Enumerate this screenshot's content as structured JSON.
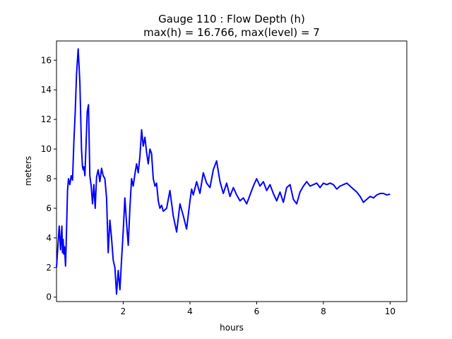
{
  "chart_data": {
    "type": "line",
    "title": "Gauge 110 : Flow Depth (h)",
    "subtitle": "max(h) =  16.766,    max(level) = 7",
    "xlabel": "hours",
    "ylabel": "meters",
    "xlim": [
      0.0,
      10.5
    ],
    "ylim": [
      -0.3,
      17.3
    ],
    "xticks": [
      2,
      4,
      6,
      8,
      10
    ],
    "yticks": [
      0,
      2,
      4,
      6,
      8,
      10,
      12,
      14,
      16
    ],
    "grid": false,
    "series_color": "#0000ff",
    "x": [
      0.0,
      0.08,
      0.12,
      0.16,
      0.18,
      0.2,
      0.22,
      0.24,
      0.27,
      0.3,
      0.33,
      0.36,
      0.4,
      0.44,
      0.48,
      0.52,
      0.56,
      0.6,
      0.65,
      0.7,
      0.75,
      0.78,
      0.8,
      0.82,
      0.85,
      0.88,
      0.92,
      0.96,
      1.0,
      1.04,
      1.08,
      1.12,
      1.16,
      1.2,
      1.25,
      1.3,
      1.35,
      1.4,
      1.45,
      1.5,
      1.55,
      1.6,
      1.65,
      1.7,
      1.75,
      1.8,
      1.85,
      1.9,
      1.95,
      2.0,
      2.05,
      2.1,
      2.15,
      2.2,
      2.25,
      2.3,
      2.35,
      2.4,
      2.45,
      2.5,
      2.55,
      2.6,
      2.65,
      2.7,
      2.75,
      2.8,
      2.85,
      2.9,
      2.95,
      3.0,
      3.05,
      3.1,
      3.15,
      3.2,
      3.3,
      3.4,
      3.5,
      3.6,
      3.7,
      3.8,
      3.9,
      4.0,
      4.05,
      4.1,
      4.2,
      4.3,
      4.4,
      4.5,
      4.6,
      4.7,
      4.8,
      4.9,
      5.0,
      5.1,
      5.2,
      5.3,
      5.4,
      5.5,
      5.6,
      5.7,
      5.8,
      5.9,
      6.0,
      6.1,
      6.2,
      6.3,
      6.4,
      6.5,
      6.6,
      6.7,
      6.8,
      6.9,
      7.0,
      7.1,
      7.2,
      7.3,
      7.4,
      7.5,
      7.6,
      7.7,
      7.8,
      7.9,
      8.0,
      8.1,
      8.2,
      8.3,
      8.4,
      8.5,
      8.6,
      8.7,
      8.8,
      8.9,
      9.0,
      9.1,
      9.2,
      9.3,
      9.4,
      9.5,
      9.6,
      9.7,
      9.8,
      9.9,
      10.0
    ],
    "y": [
      2.0,
      4.8,
      3.2,
      4.8,
      3.0,
      3.9,
      2.9,
      3.4,
      2.1,
      4.5,
      7.2,
      8.0,
      7.6,
      8.2,
      7.9,
      10.5,
      12.5,
      15.0,
      16.766,
      14.5,
      10.0,
      8.8,
      8.6,
      8.8,
      8.2,
      10.0,
      12.5,
      13.0,
      8.2,
      7.5,
      6.3,
      7.6,
      6.0,
      8.1,
      8.6,
      7.8,
      8.7,
      8.2,
      8.0,
      6.7,
      3.0,
      5.2,
      4.0,
      2.5,
      2.0,
      0.2,
      1.8,
      0.5,
      2.5,
      4.5,
      6.7,
      5.0,
      3.5,
      6.0,
      8.0,
      7.5,
      8.3,
      9.0,
      8.4,
      9.5,
      11.3,
      10.2,
      10.8,
      9.8,
      9.0,
      10.0,
      9.7,
      8.0,
      7.5,
      7.7,
      6.5,
      6.0,
      6.2,
      5.8,
      6.0,
      7.2,
      5.5,
      4.4,
      6.3,
      5.5,
      4.6,
      6.5,
      7.3,
      6.9,
      7.8,
      7.0,
      8.4,
      7.7,
      7.4,
      8.6,
      9.2,
      7.8,
      7.0,
      7.7,
      6.8,
      7.4,
      6.9,
      6.5,
      6.7,
      6.3,
      6.9,
      7.5,
      8.0,
      7.5,
      7.8,
      7.2,
      7.6,
      7.0,
      6.5,
      7.1,
      6.4,
      7.4,
      7.6,
      6.6,
      6.3,
      7.1,
      7.5,
      7.8,
      7.5,
      7.6,
      7.7,
      7.4,
      7.7,
      7.6,
      7.7,
      7.6,
      7.3,
      7.5,
      7.6,
      7.7,
      7.5,
      7.3,
      7.1,
      6.8,
      6.4,
      6.6,
      6.8,
      6.7,
      6.9,
      7.0,
      7.0,
      6.9,
      6.95
    ]
  }
}
